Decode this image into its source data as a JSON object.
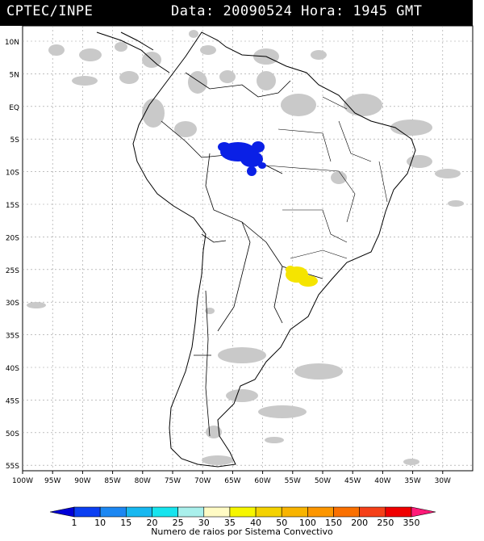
{
  "header": {
    "source": "CPTEC/INPE",
    "date_label": "Data:",
    "date_value": "20090524",
    "time_label": "Hora:",
    "time_value": "1945",
    "timezone": "GMT"
  },
  "map": {
    "lat_labels": [
      "10N",
      "5N",
      "EQ",
      "5S",
      "10S",
      "15S",
      "20S",
      "25S",
      "30S",
      "35S",
      "40S",
      "45S",
      "50S",
      "55S"
    ],
    "lon_labels": [
      "100W",
      "95W",
      "90W",
      "85W",
      "80W",
      "75W",
      "70W",
      "65W",
      "60W",
      "55W",
      "50W",
      "45W",
      "40W",
      "35W",
      "30W"
    ]
  },
  "legend": {
    "title": "Numero de raios por Sistema Convectivo",
    "values": [
      "1",
      "10",
      "15",
      "20",
      "25",
      "30",
      "35",
      "40",
      "50",
      "100",
      "150",
      "200",
      "250",
      "350"
    ],
    "colors": [
      "#0000d8",
      "#0b3ff2",
      "#1c87f2",
      "#18b8f0",
      "#17e4ee",
      "#a9f0ec",
      "#fffbc4",
      "#f6f600",
      "#f4d200",
      "#f8b400",
      "#fc9600",
      "#fa7000",
      "#f54018",
      "#f00000",
      "#ff1a78"
    ]
  },
  "overlays": {
    "cloud_color": "#c9c9c9",
    "lightning_north_color": "#0a20e6",
    "lightning_south_color": "#f5e400"
  }
}
